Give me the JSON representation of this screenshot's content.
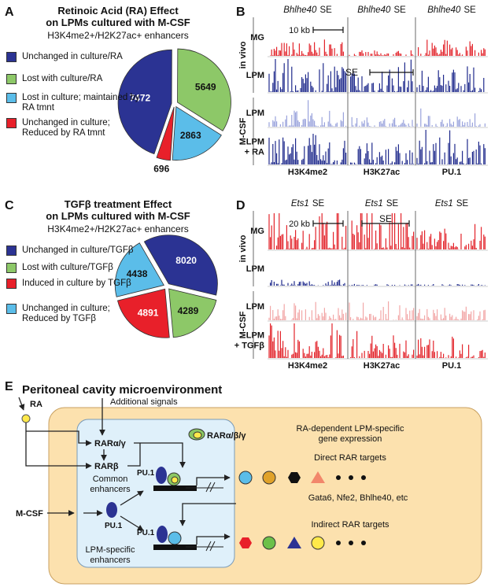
{
  "panel_labels": [
    "A",
    "B",
    "C",
    "D",
    "E"
  ],
  "chart_data": [
    {
      "type": "pie",
      "title": [
        "Retinoic Acid (RA) Effect",
        "on LPMs cultured with M-CSF"
      ],
      "subtitle": "H3K4me2+/H2K27ac+ enhancers",
      "categories": [
        "Unchanged in culture/RA",
        "Lost with culture/RA",
        "Lost in culture; maintained by RA tmnt",
        "Unchanged in culture; Reduced by RA tmnt"
      ],
      "values": [
        7472,
        5649,
        2863,
        696
      ],
      "colors": [
        "#2b3393",
        "#8dc868",
        "#5bbde9",
        "#e8202a"
      ]
    },
    {
      "type": "pie",
      "title": [
        "TGFβ treatment Effect",
        "on LPMs cultured with M-CSF"
      ],
      "subtitle": "H3K4me2+/H2K27ac+ enhancers",
      "categories": [
        "Unchanged in culture/TGFβ",
        "Lost with culture/TGFβ",
        "Induced in culture by TGFβ",
        "Unchanged in culture; Reduced by TGFβ"
      ],
      "values": [
        8020,
        4289,
        4891,
        4438
      ],
      "colors": [
        "#2b3393",
        "#8dc868",
        "#e8202a",
        "#5bbde9"
      ]
    }
  ],
  "tracks": [
    {
      "columns": [
        {
          "gene": "Bhlhe40",
          "tag": "SE",
          "mark": "H3K4me2"
        },
        {
          "gene": "Bhlhe40",
          "tag": "SE",
          "mark": "H3K27ac"
        },
        {
          "gene": "Bhlhe40",
          "tag": "SE",
          "mark": "PU.1"
        }
      ],
      "groups": [
        "in vivo",
        "M-CSF"
      ],
      "rows": [
        [
          "MG"
        ],
        [
          "LPM"
        ],
        [
          "LPM"
        ],
        [
          "LPM",
          "+ RA"
        ]
      ],
      "scale_bar": "10 kb",
      "se_label": "SE"
    },
    {
      "columns": [
        {
          "gene": "Ets1",
          "tag": "SE",
          "mark": "H3K4me2"
        },
        {
          "gene": "Ets1",
          "tag": "SE",
          "mark": "H3K27ac"
        },
        {
          "gene": "Ets1",
          "tag": "SE",
          "mark": "PU.1"
        }
      ],
      "groups": [
        "in vivo",
        "M-CSF"
      ],
      "rows": [
        [
          "MG"
        ],
        [
          "LPM"
        ],
        [
          "LPM"
        ],
        [
          "LPM",
          "+ TGFβ"
        ]
      ],
      "scale_bar": "20 kb",
      "se_label": "SE"
    }
  ],
  "diagram": {
    "title": "Peritoneal cavity microenvironment",
    "ra": "RA",
    "additional_signals": "Additional signals",
    "rar_ag": "RARα/γ",
    "rar_abg": "RARα/β/γ",
    "rar_b": "RARβ",
    "common_enhancers": [
      "Common",
      "enhancers"
    ],
    "pu1": [
      "PU.1",
      "PU.1",
      "PU.1"
    ],
    "mcsf": "M-CSF",
    "lpm_enhancers": [
      "LPM-specific",
      "enhancers"
    ],
    "expression": [
      "RA-dependent LPM-specific",
      "gene expression"
    ],
    "direct": "Direct RAR targets",
    "genes": "Gata6, Nfe2, Bhlhe40, etc",
    "indirect": "Indirect RAR targets"
  }
}
